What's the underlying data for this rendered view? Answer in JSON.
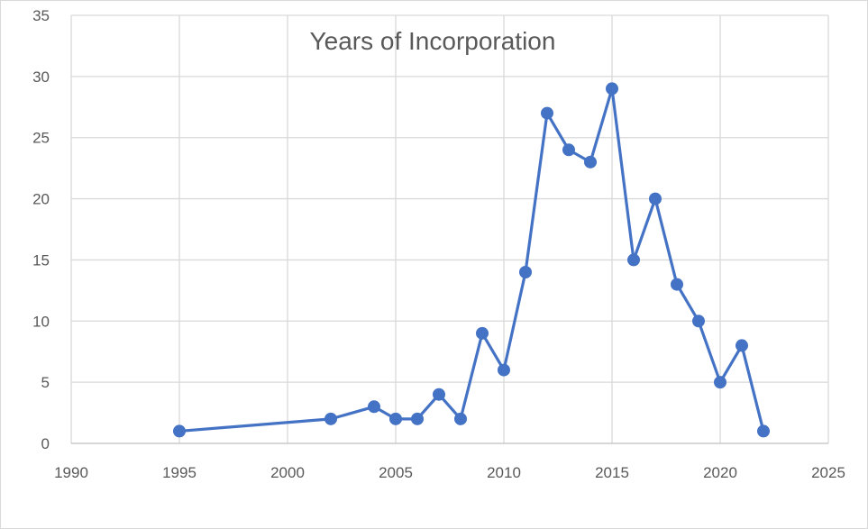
{
  "chart_data": {
    "type": "scatter",
    "title": "Years of Incorporation",
    "xlabel": "",
    "ylabel": "",
    "xlim": [
      1990,
      2025
    ],
    "ylim": [
      0,
      35
    ],
    "x_ticks": [
      1990,
      1995,
      2000,
      2005,
      2010,
      2015,
      2020,
      2025
    ],
    "y_ticks": [
      0,
      5,
      10,
      15,
      20,
      25,
      30,
      35
    ],
    "grid": true,
    "legend": "none",
    "line_color": "#4472C4",
    "series": [
      {
        "x": [
          1995,
          2002,
          2004,
          2005,
          2006,
          2007,
          2008,
          2009,
          2010,
          2011,
          2012,
          2013,
          2014,
          2015,
          2016,
          2017,
          2018,
          2019,
          2020,
          2021,
          2022
        ],
        "y": [
          1,
          2,
          3,
          2,
          2,
          4,
          2,
          9,
          6,
          14,
          27,
          24,
          23,
          29,
          15,
          20,
          13,
          10,
          5,
          8,
          1
        ]
      }
    ]
  }
}
